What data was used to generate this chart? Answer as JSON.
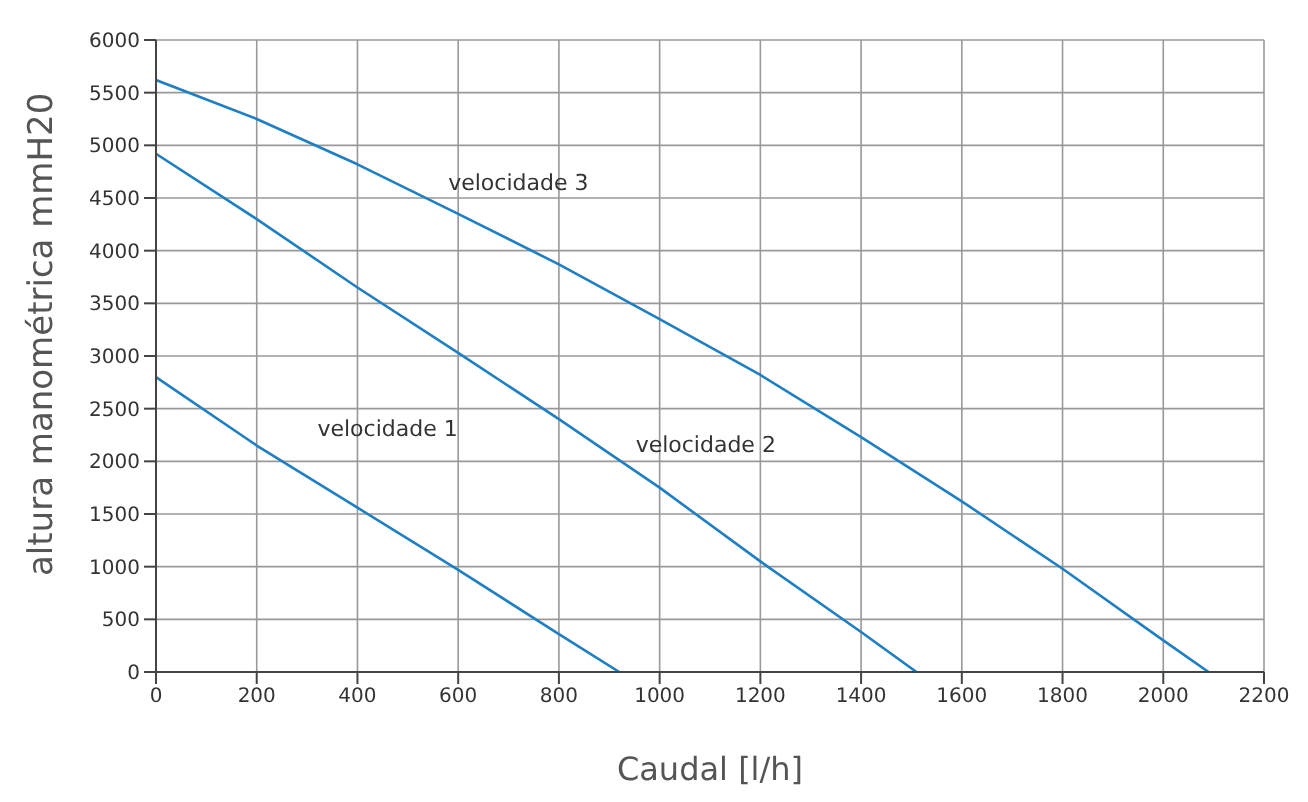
{
  "chart_data": {
    "type": "line",
    "xlabel": "Caudal [l/h]",
    "ylabel": "altura manométrica mmH20",
    "xlim": [
      0,
      2200
    ],
    "xticks": [
      0,
      200,
      400,
      600,
      800,
      1000,
      1200,
      1400,
      1600,
      1800,
      2000,
      2200
    ],
    "ylim": [
      0,
      6000
    ],
    "yticks": [
      0,
      500,
      1000,
      1500,
      2000,
      2500,
      3000,
      3500,
      4000,
      4500,
      5000,
      5500,
      6000
    ],
    "grid": true,
    "marker": "none",
    "line_style": "solid",
    "series": [
      {
        "name": "velocidade 1",
        "color": "#1f7fc0",
        "x": [
          0,
          200,
          400,
          600,
          800,
          920
        ],
        "values": [
          2800,
          2150,
          1560,
          970,
          360,
          0
        ]
      },
      {
        "name": "velocidade 2",
        "color": "#1f7fc0",
        "x": [
          0,
          200,
          400,
          600,
          800,
          1000,
          1200,
          1400,
          1510
        ],
        "values": [
          4920,
          4300,
          3650,
          3030,
          2400,
          1750,
          1050,
          380,
          0
        ]
      },
      {
        "name": "velocidade 3",
        "color": "#1f7fc0",
        "x": [
          0,
          200,
          400,
          600,
          800,
          1000,
          1200,
          1400,
          1600,
          1800,
          2000,
          2090
        ],
        "values": [
          5620,
          5250,
          4820,
          4350,
          3870,
          3350,
          2820,
          2230,
          1620,
          980,
          300,
          0
        ]
      }
    ]
  }
}
